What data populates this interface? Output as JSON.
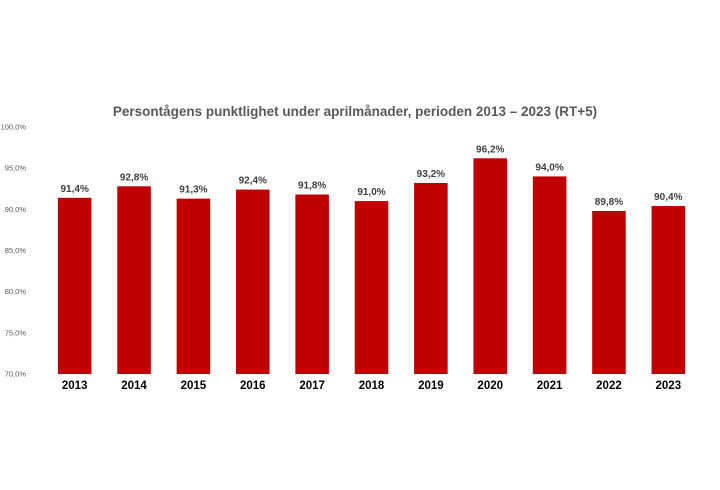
{
  "chart_data": {
    "type": "bar",
    "title": "Persontågens punktlighet under aprilmånader, perioden 2013 – 2023 (RT+5)",
    "xlabel": "",
    "ylabel": "",
    "categories": [
      "2013",
      "2014",
      "2015",
      "2016",
      "2017",
      "2018",
      "2019",
      "2020",
      "2021",
      "2022",
      "2023"
    ],
    "values": [
      91.4,
      92.8,
      91.3,
      92.4,
      91.8,
      91.0,
      93.2,
      96.2,
      94.0,
      89.8,
      90.4
    ],
    "value_labels": [
      "91,4%",
      "92,8%",
      "91,3%",
      "92,4%",
      "91,8%",
      "91,0%",
      "93,2%",
      "96,2%",
      "94,0%",
      "89,8%",
      "90,4%"
    ],
    "ylim": [
      70,
      100
    ],
    "y_ticks": [
      70,
      75,
      80,
      85,
      90,
      95,
      100
    ],
    "y_tick_labels": [
      "70,0%",
      "75,0%",
      "80,0%",
      "85,0%",
      "90,0%",
      "95,0%",
      "100,0%"
    ],
    "grid": false,
    "legend": "none",
    "bar_color": "#c00000"
  }
}
